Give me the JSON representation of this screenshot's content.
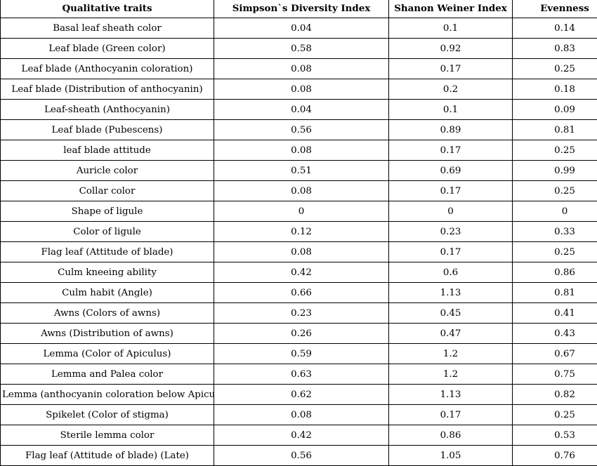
{
  "table": {
    "headers": [
      "Qualitative traits",
      "Simpson`s Diversity Index",
      "Shanon Weiner Index",
      "Evenness"
    ],
    "rows": [
      [
        "Basal leaf sheath color",
        "0.04",
        "0.1",
        "0.14"
      ],
      [
        "Leaf blade (Green color)",
        "0.58",
        "0.92",
        "0.83"
      ],
      [
        "Leaf blade (Anthocyanin coloration)",
        "0.08",
        "0.17",
        "0.25"
      ],
      [
        "Leaf blade (Distribution of anthocyanin)",
        "0.08",
        "0.2",
        "0.18"
      ],
      [
        "Leaf-sheath (Anthocyanin)",
        "0.04",
        "0.1",
        "0.09"
      ],
      [
        "Leaf blade (Pubescens)",
        "0.56",
        "0.89",
        "0.81"
      ],
      [
        "leaf blade attitude",
        "0.08",
        "0.17",
        "0.25"
      ],
      [
        "Auricle color",
        "0.51",
        "0.69",
        "0.99"
      ],
      [
        "Collar color",
        "0.08",
        "0.17",
        "0.25"
      ],
      [
        "Shape of ligule",
        "0",
        "0",
        "0"
      ],
      [
        "Color of ligule",
        "0.12",
        "0.23",
        "0.33"
      ],
      [
        "Flag leaf (Attitude of blade)",
        "0.08",
        "0.17",
        "0.25"
      ],
      [
        "Culm kneeing ability",
        "0.42",
        "0.6",
        "0.86"
      ],
      [
        "Culm habit (Angle)",
        "0.66",
        "1.13",
        "0.81"
      ],
      [
        "Awns (Colors of awns)",
        "0.23",
        "0.45",
        "0.41"
      ],
      [
        "Awns (Distribution of awns)",
        "0.26",
        "0.47",
        "0.43"
      ],
      [
        "Lemma (Color of Apiculus)",
        "0.59",
        "1.2",
        "0.67"
      ],
      [
        "Lemma and Palea color",
        "0.63",
        "1.2",
        "0.75"
      ],
      [
        "Lemma (anthocyanin coloration below Apiculus)",
        "0.62",
        "1.13",
        "0.82"
      ],
      [
        "Spikelet (Color of stigma)",
        "0.08",
        "0.17",
        "0.25"
      ],
      [
        "Sterile lemma color",
        "0.42",
        "0.86",
        "0.53"
      ],
      [
        "Flag leaf (Attitude of blade) (Late)",
        "0.56",
        "1.05",
        "0.76"
      ]
    ]
  }
}
